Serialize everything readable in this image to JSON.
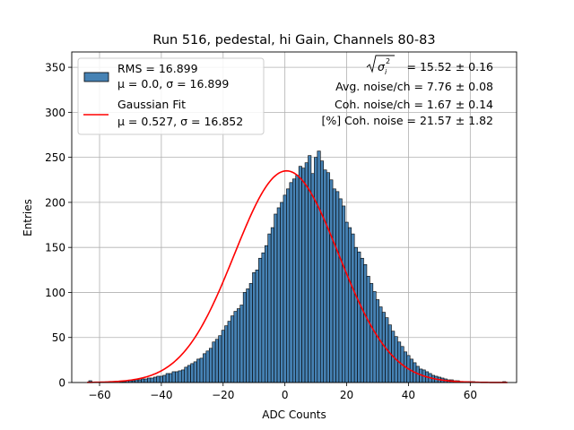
{
  "chart_data": {
    "type": "bar",
    "title": "Run 516, pedestal, hi Gain, Channels 80-83",
    "xlabel": "ADC Counts",
    "ylabel": "Entries",
    "xlim": [
      -69,
      75
    ],
    "ylim": [
      0,
      367
    ],
    "xticks": [
      -60,
      -40,
      -20,
      0,
      20,
      40,
      60
    ],
    "yticks": [
      0,
      50,
      100,
      150,
      200,
      250,
      300,
      350
    ],
    "grid": true,
    "bin_width": 1,
    "bin_start": -63,
    "values": [
      2,
      0,
      0,
      0,
      0,
      0,
      0,
      0,
      0,
      0,
      1,
      1,
      2,
      2,
      2,
      3,
      3,
      4,
      4,
      5,
      5,
      6,
      7,
      7,
      8,
      10,
      10,
      12,
      12,
      13,
      14,
      17,
      19,
      21,
      23,
      26,
      27,
      32,
      35,
      38,
      45,
      48,
      52,
      58,
      63,
      68,
      74,
      79,
      82,
      86,
      100,
      104,
      110,
      122,
      125,
      138,
      144,
      152,
      165,
      172,
      187,
      194,
      200,
      208,
      215,
      222,
      226,
      230,
      240,
      238,
      244,
      252,
      232,
      250,
      257,
      246,
      236,
      233,
      225,
      215,
      212,
      204,
      196,
      178,
      172,
      165,
      150,
      145,
      138,
      131,
      118,
      110,
      101,
      92,
      84,
      78,
      72,
      64,
      57,
      51,
      45,
      40,
      34,
      30,
      26,
      22,
      18,
      15,
      14,
      12,
      10,
      8,
      7,
      6,
      5,
      4,
      3,
      3,
      2,
      2,
      1,
      1,
      1,
      1,
      1,
      0,
      0,
      0,
      0,
      0,
      0,
      0,
      0,
      0,
      1
    ],
    "fit": {
      "mu": 0.527,
      "sigma": 16.852,
      "amplitude": 235
    },
    "series": [
      {
        "name": "RMS = 16.899\nμ = 0.0, σ = 16.899",
        "type": "bar",
        "color": "#4682b4",
        "edge": "#000000"
      },
      {
        "name": "Gaussian Fit\nμ = 0.527, σ = 16.852",
        "type": "line",
        "color": "#ff0000"
      }
    ],
    "legend": {
      "placement": "upper-left",
      "entries": [
        {
          "lines": [
            "RMS = 16.899",
            "μ = 0.0, σ = 16.899"
          ]
        },
        {
          "lines": [
            "Gaussian Fit",
            "μ = 0.527, σ = 16.852"
          ]
        }
      ]
    },
    "annotations": [
      "√σᵢ² = 15.52 ± 0.16",
      "Avg. noise/ch = 7.76 ± 0.08",
      "Coh. noise/ch = 1.67 ± 0.14",
      "[%] Coh. noise = 21.57 ± 1.82"
    ],
    "annotation_first_value": "= 15.52 ± 0.16",
    "colors": {
      "bar": "#4682b4",
      "bar_edge": "#000000",
      "fit": "#ff0000",
      "grid": "#b0b0b0"
    }
  }
}
